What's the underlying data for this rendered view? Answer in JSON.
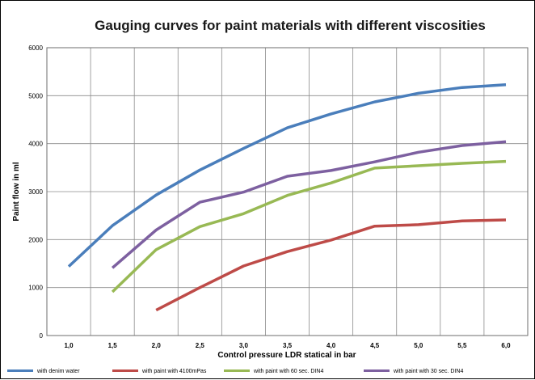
{
  "chart_data": {
    "type": "line",
    "title": "Gauging curves for paint materials with different viscosities",
    "xlabel": "Control pressure LDR statical in bar",
    "ylabel": "Paint flow in ml",
    "categories": [
      "1,0",
      "1,5",
      "2,0",
      "2,5",
      "3,0",
      "3,5",
      "4,0",
      "4,5",
      "5,0",
      "5,5",
      "6,0"
    ],
    "x": [
      1.0,
      1.5,
      2.0,
      2.5,
      3.0,
      3.5,
      4.0,
      4.5,
      5.0,
      5.5,
      6.0
    ],
    "ylim": [
      0,
      6000
    ],
    "yticks": [
      0,
      1000,
      2000,
      3000,
      4000,
      5000,
      6000
    ],
    "ytick_labels": [
      "0",
      "1000",
      "2000",
      "3000",
      "4000",
      "5000",
      "6000"
    ],
    "grid": true,
    "legend_position": "bottom",
    "series": [
      {
        "name": "with denim water",
        "color": "#4a7ebb",
        "values": [
          1440,
          2290,
          2930,
          3450,
          3900,
          4330,
          4620,
          4870,
          5050,
          5170,
          5230
        ]
      },
      {
        "name": "with paint with 4100mPas",
        "color": "#be4b48",
        "values": [
          null,
          null,
          530,
          1000,
          1450,
          1750,
          1990,
          2280,
          2310,
          2390,
          2410
        ]
      },
      {
        "name": "with paint with 60 sec. DIN4",
        "color": "#98b954",
        "values": [
          null,
          910,
          1790,
          2270,
          2540,
          2920,
          3180,
          3490,
          3540,
          3590,
          3630
        ]
      },
      {
        "name": "with paint with 30 sec. DIN4",
        "color": "#7d60a0",
        "values": [
          null,
          1410,
          2200,
          2780,
          2990,
          3320,
          3440,
          3620,
          3820,
          3960,
          4040
        ]
      }
    ]
  }
}
